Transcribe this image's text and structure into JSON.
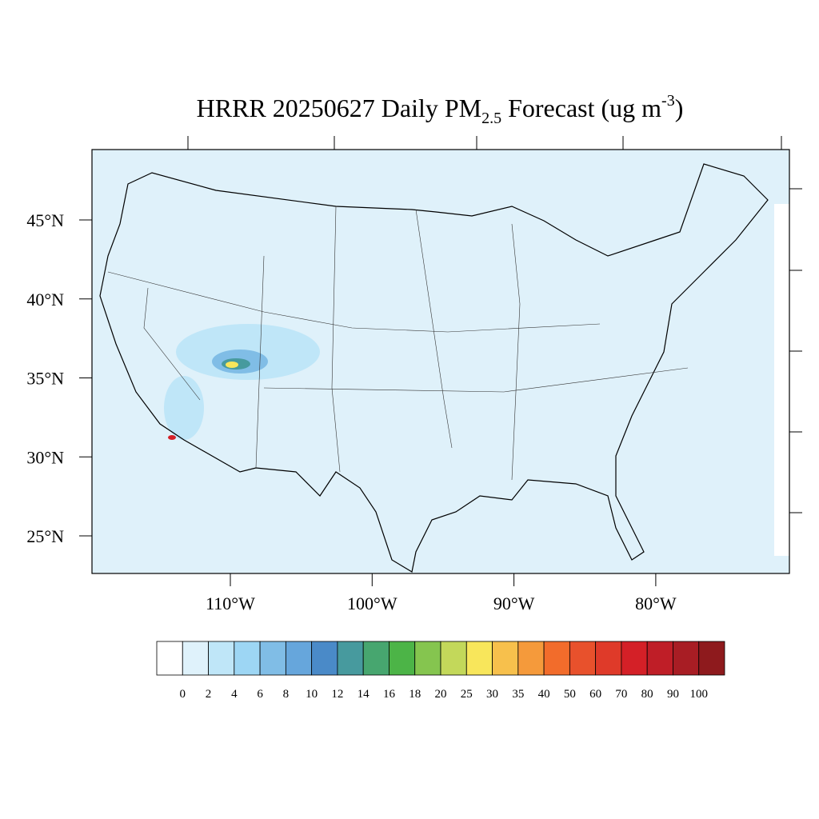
{
  "title": {
    "main": "HRRR 20250627 Daily PM",
    "subscript": "2.5",
    "middle": " Forecast (ug m",
    "superscript": "-3",
    "end": ")"
  },
  "lat_ticks": [
    {
      "value": 45,
      "label": "45°N"
    },
    {
      "value": 40,
      "label": "40°N"
    },
    {
      "value": 35,
      "label": "35°N"
    },
    {
      "value": 30,
      "label": "30°N"
    },
    {
      "value": 25,
      "label": "25°N"
    }
  ],
  "lon_ticks": [
    {
      "value": -110,
      "label": "110°W"
    },
    {
      "value": -100,
      "label": "100°W"
    },
    {
      "value": -90,
      "label": "90°W"
    },
    {
      "value": -80,
      "label": "80°W"
    }
  ],
  "colorbar": {
    "levels": [
      0,
      2,
      4,
      6,
      8,
      10,
      12,
      14,
      16,
      18,
      20,
      25,
      30,
      35,
      40,
      50,
      60,
      70,
      80,
      90,
      100
    ],
    "colors": [
      "#ffffff",
      "#dff2fb",
      "#bfe6f8",
      "#9dd6f4",
      "#80bde6",
      "#66a6dc",
      "#4a8ac8",
      "#479a9e",
      "#47a66f",
      "#4cb447",
      "#85c54f",
      "#c3d85a",
      "#f8e65b",
      "#f7c04c",
      "#f59a3b",
      "#f26c2b",
      "#e8512c",
      "#df3a29",
      "#d42027",
      "#bf1e27",
      "#a81d24",
      "#8e1a1d"
    ]
  }
}
